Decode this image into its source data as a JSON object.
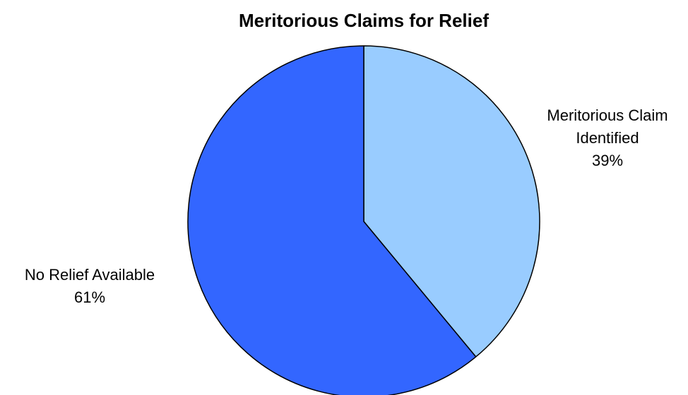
{
  "chart_data": {
    "type": "pie",
    "title": "Meritorious Claims for Relief",
    "slices": [
      {
        "label_lines": [
          "Meritorious Claim",
          "Identified"
        ],
        "percent_label": "39%",
        "value": 39,
        "color": "#99ccff"
      },
      {
        "label_lines": [
          "No Relief Available"
        ],
        "percent_label": "61%",
        "value": 61,
        "color": "#3366ff"
      }
    ],
    "start_angle": "12 o'clock",
    "direction": "clockwise",
    "legend": "none",
    "slice_outline_color": "#000000"
  }
}
